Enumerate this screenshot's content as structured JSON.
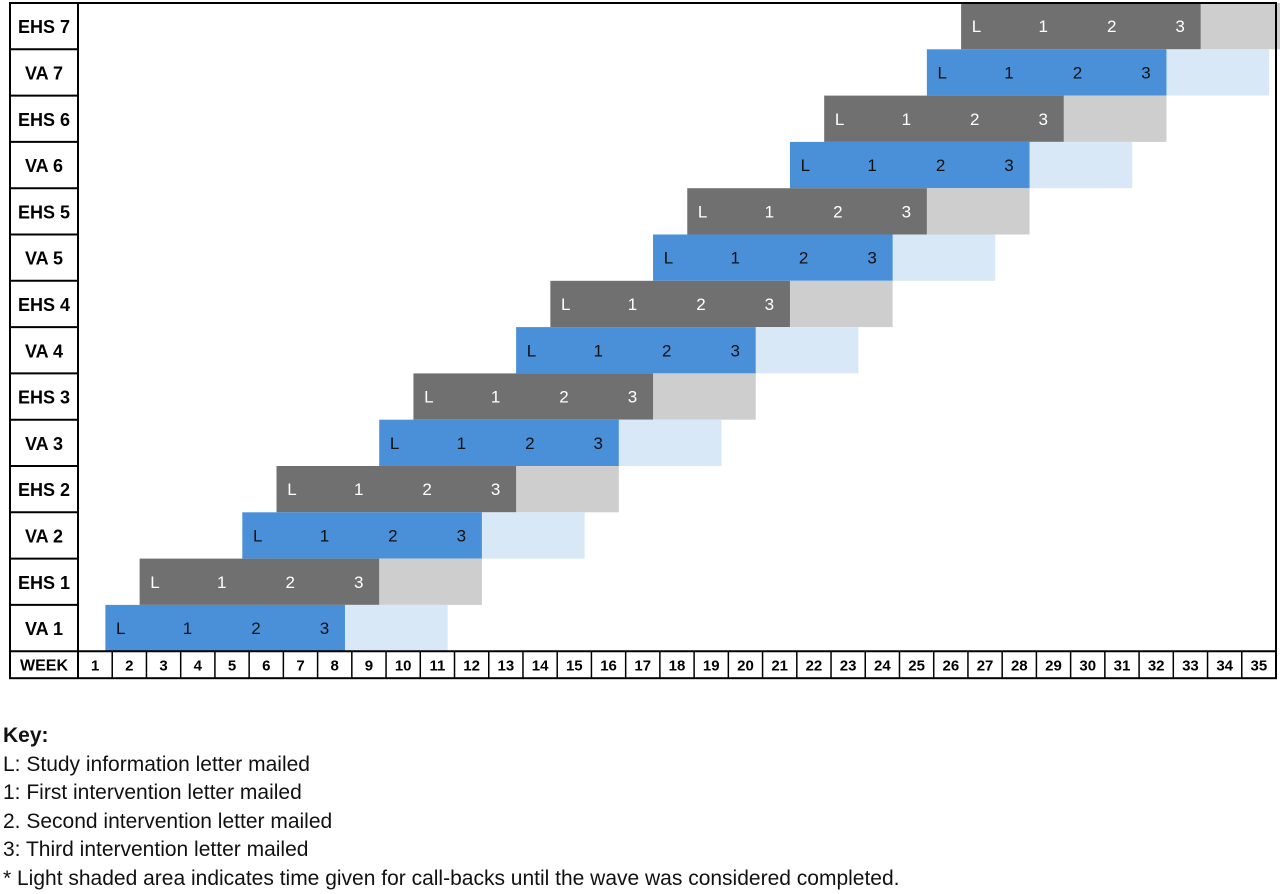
{
  "chart_data": {
    "type": "gantt",
    "x_label": "WEEK",
    "weeks": [
      "1",
      "2",
      "3",
      "4",
      "5",
      "6",
      "7",
      "8",
      "9",
      "10",
      "11",
      "12",
      "13",
      "14",
      "15",
      "16",
      "17",
      "18",
      "19",
      "20",
      "21",
      "22",
      "23",
      "24",
      "25",
      "26",
      "27",
      "28",
      "29",
      "30",
      "31",
      "32",
      "33",
      "34",
      "35"
    ],
    "rows": [
      {
        "label": "EHS 7",
        "kind": "EHS",
        "start_week": 25.8,
        "end_week": 32.8,
        "callback_end_week": 36.0,
        "marks": [
          {
            "label": "L",
            "week": 26.25
          },
          {
            "label": "1",
            "week": 28.2
          },
          {
            "label": "2",
            "week": 30.2
          },
          {
            "label": "3",
            "week": 32.2
          }
        ]
      },
      {
        "label": "VA 7",
        "kind": "VA",
        "start_week": 24.8,
        "end_week": 31.8,
        "callback_end_week": 34.8,
        "marks": [
          {
            "label": "L",
            "week": 25.25
          },
          {
            "label": "1",
            "week": 27.2
          },
          {
            "label": "2",
            "week": 29.2
          },
          {
            "label": "3",
            "week": 31.2
          }
        ]
      },
      {
        "label": "EHS 6",
        "kind": "EHS",
        "start_week": 21.8,
        "end_week": 28.8,
        "callback_end_week": 31.8,
        "marks": [
          {
            "label": "L",
            "week": 22.25
          },
          {
            "label": "1",
            "week": 24.2
          },
          {
            "label": "2",
            "week": 26.2
          },
          {
            "label": "3",
            "week": 28.2
          }
        ]
      },
      {
        "label": "VA 6",
        "kind": "VA",
        "start_week": 20.8,
        "end_week": 27.8,
        "callback_end_week": 30.8,
        "marks": [
          {
            "label": "L",
            "week": 21.25
          },
          {
            "label": "1",
            "week": 23.2
          },
          {
            "label": "2",
            "week": 25.2
          },
          {
            "label": "3",
            "week": 27.2
          }
        ]
      },
      {
        "label": "EHS 5",
        "kind": "EHS",
        "start_week": 17.8,
        "end_week": 24.8,
        "callback_end_week": 27.8,
        "marks": [
          {
            "label": "L",
            "week": 18.25
          },
          {
            "label": "1",
            "week": 20.2
          },
          {
            "label": "2",
            "week": 22.2
          },
          {
            "label": "3",
            "week": 24.2
          }
        ]
      },
      {
        "label": "VA 5",
        "kind": "VA",
        "start_week": 16.8,
        "end_week": 23.8,
        "callback_end_week": 26.8,
        "marks": [
          {
            "label": "L",
            "week": 17.25
          },
          {
            "label": "1",
            "week": 19.2
          },
          {
            "label": "2",
            "week": 21.2
          },
          {
            "label": "3",
            "week": 23.2
          }
        ]
      },
      {
        "label": "EHS 4",
        "kind": "EHS",
        "start_week": 13.8,
        "end_week": 20.8,
        "callback_end_week": 23.8,
        "marks": [
          {
            "label": "L",
            "week": 14.25
          },
          {
            "label": "1",
            "week": 16.2
          },
          {
            "label": "2",
            "week": 18.2
          },
          {
            "label": "3",
            "week": 20.2
          }
        ]
      },
      {
        "label": "VA 4",
        "kind": "VA",
        "start_week": 12.8,
        "end_week": 19.8,
        "callback_end_week": 22.8,
        "marks": [
          {
            "label": "L",
            "week": 13.25
          },
          {
            "label": "1",
            "week": 15.2
          },
          {
            "label": "2",
            "week": 17.2
          },
          {
            "label": "3",
            "week": 19.2
          }
        ]
      },
      {
        "label": "EHS 3",
        "kind": "EHS",
        "start_week": 9.8,
        "end_week": 16.8,
        "callback_end_week": 19.8,
        "marks": [
          {
            "label": "L",
            "week": 10.25
          },
          {
            "label": "1",
            "week": 12.2
          },
          {
            "label": "2",
            "week": 14.2
          },
          {
            "label": "3",
            "week": 16.2
          }
        ]
      },
      {
        "label": "VA 3",
        "kind": "VA",
        "start_week": 8.8,
        "end_week": 15.8,
        "callback_end_week": 18.8,
        "marks": [
          {
            "label": "L",
            "week": 9.25
          },
          {
            "label": "1",
            "week": 11.2
          },
          {
            "label": "2",
            "week": 13.2
          },
          {
            "label": "3",
            "week": 15.2
          }
        ]
      },
      {
        "label": "EHS 2",
        "kind": "EHS",
        "start_week": 5.8,
        "end_week": 12.8,
        "callback_end_week": 15.8,
        "marks": [
          {
            "label": "L",
            "week": 6.25
          },
          {
            "label": "1",
            "week": 8.2
          },
          {
            "label": "2",
            "week": 10.2
          },
          {
            "label": "3",
            "week": 12.2
          }
        ]
      },
      {
        "label": "VA 2",
        "kind": "VA",
        "start_week": 4.8,
        "end_week": 11.8,
        "callback_end_week": 14.8,
        "marks": [
          {
            "label": "L",
            "week": 5.25
          },
          {
            "label": "1",
            "week": 7.2
          },
          {
            "label": "2",
            "week": 9.2
          },
          {
            "label": "3",
            "week": 11.2
          }
        ]
      },
      {
        "label": "EHS 1",
        "kind": "EHS",
        "start_week": 1.8,
        "end_week": 8.8,
        "callback_end_week": 11.8,
        "marks": [
          {
            "label": "L",
            "week": 2.25
          },
          {
            "label": "1",
            "week": 4.2
          },
          {
            "label": "2",
            "week": 6.2
          },
          {
            "label": "3",
            "week": 8.2
          }
        ]
      },
      {
        "label": "VA 1",
        "kind": "VA",
        "start_week": 0.8,
        "end_week": 7.8,
        "callback_end_week": 10.8,
        "marks": [
          {
            "label": "L",
            "week": 1.25
          },
          {
            "label": "1",
            "week": 3.2
          },
          {
            "label": "2",
            "week": 5.2
          },
          {
            "label": "3",
            "week": 7.2
          }
        ]
      }
    ],
    "colors": {
      "VA": "#4a90d9",
      "VA_light": "#d9e8f7",
      "EHS": "#707070",
      "EHS_light": "#cecece",
      "VA_mark_text": "#111111",
      "EHS_mark_text": "#ffffff"
    }
  },
  "key": {
    "title": "Key:",
    "lines": [
      "L: Study information letter mailed",
      "1: First intervention letter mailed",
      "2. Second intervention letter mailed",
      "3: Third intervention letter mailed",
      "* Light shaded area indicates time given for call-backs until the wave was considered completed."
    ]
  }
}
